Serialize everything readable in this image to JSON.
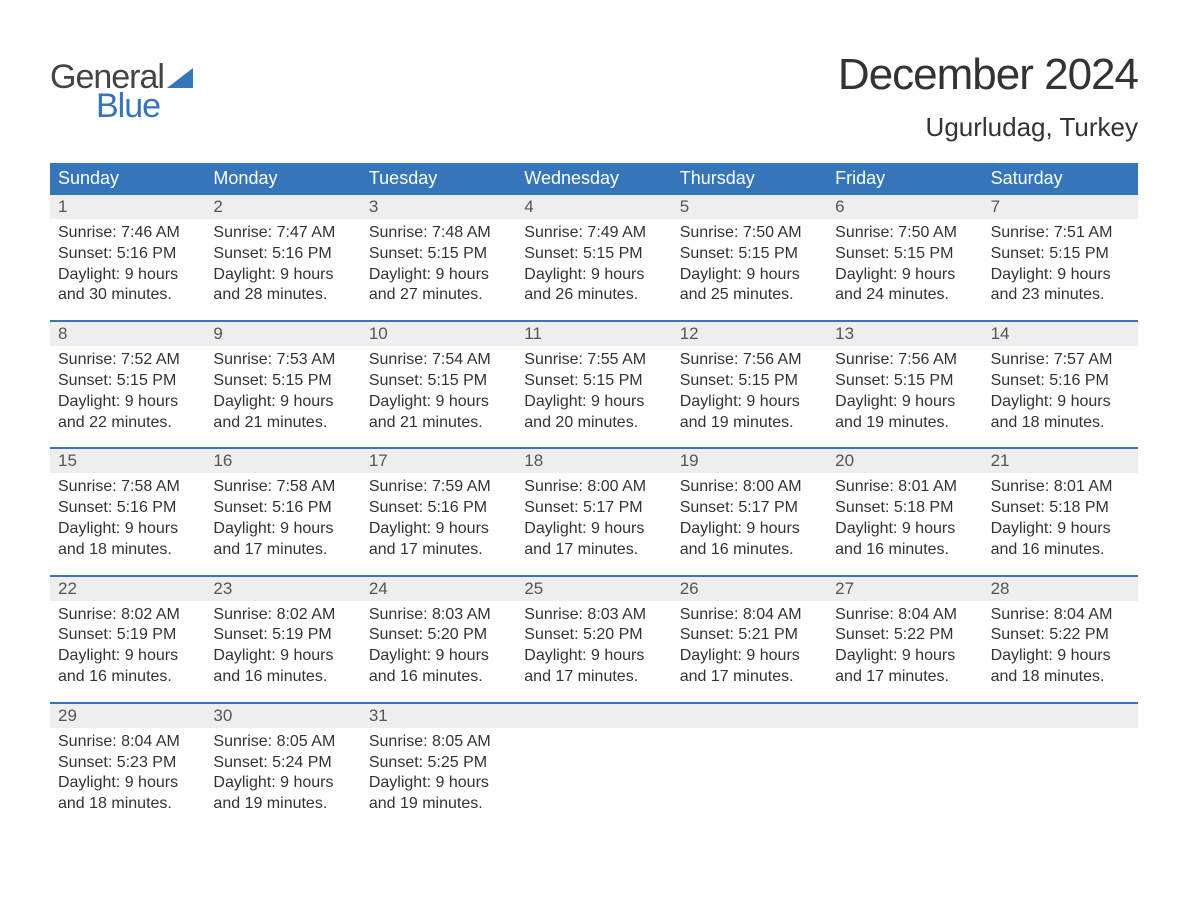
{
  "brand": {
    "word1": "General",
    "word2": "Blue",
    "text_color": "#444444",
    "accent_color": "#3576bb"
  },
  "title": {
    "month": "December 2024",
    "location": "Ugurludag, Turkey"
  },
  "colors": {
    "header_bg": "#3576bb",
    "header_text": "#ffffff",
    "daynum_bg": "#eeeeee",
    "daynum_text": "#555555",
    "body_text": "#333333",
    "week_border": "#3576bb",
    "page_bg": "#ffffff"
  },
  "weekdays": [
    "Sunday",
    "Monday",
    "Tuesday",
    "Wednesday",
    "Thursday",
    "Friday",
    "Saturday"
  ],
  "labels": {
    "sunrise": "Sunrise:",
    "sunset": "Sunset:",
    "daylight": "Daylight:"
  },
  "weeks": [
    [
      {
        "day": "1",
        "sunrise": "7:46 AM",
        "sunset": "5:16 PM",
        "daylight": "9 hours and 30 minutes."
      },
      {
        "day": "2",
        "sunrise": "7:47 AM",
        "sunset": "5:16 PM",
        "daylight": "9 hours and 28 minutes."
      },
      {
        "day": "3",
        "sunrise": "7:48 AM",
        "sunset": "5:15 PM",
        "daylight": "9 hours and 27 minutes."
      },
      {
        "day": "4",
        "sunrise": "7:49 AM",
        "sunset": "5:15 PM",
        "daylight": "9 hours and 26 minutes."
      },
      {
        "day": "5",
        "sunrise": "7:50 AM",
        "sunset": "5:15 PM",
        "daylight": "9 hours and 25 minutes."
      },
      {
        "day": "6",
        "sunrise": "7:50 AM",
        "sunset": "5:15 PM",
        "daylight": "9 hours and 24 minutes."
      },
      {
        "day": "7",
        "sunrise": "7:51 AM",
        "sunset": "5:15 PM",
        "daylight": "9 hours and 23 minutes."
      }
    ],
    [
      {
        "day": "8",
        "sunrise": "7:52 AM",
        "sunset": "5:15 PM",
        "daylight": "9 hours and 22 minutes."
      },
      {
        "day": "9",
        "sunrise": "7:53 AM",
        "sunset": "5:15 PM",
        "daylight": "9 hours and 21 minutes."
      },
      {
        "day": "10",
        "sunrise": "7:54 AM",
        "sunset": "5:15 PM",
        "daylight": "9 hours and 21 minutes."
      },
      {
        "day": "11",
        "sunrise": "7:55 AM",
        "sunset": "5:15 PM",
        "daylight": "9 hours and 20 minutes."
      },
      {
        "day": "12",
        "sunrise": "7:56 AM",
        "sunset": "5:15 PM",
        "daylight": "9 hours and 19 minutes."
      },
      {
        "day": "13",
        "sunrise": "7:56 AM",
        "sunset": "5:15 PM",
        "daylight": "9 hours and 19 minutes."
      },
      {
        "day": "14",
        "sunrise": "7:57 AM",
        "sunset": "5:16 PM",
        "daylight": "9 hours and 18 minutes."
      }
    ],
    [
      {
        "day": "15",
        "sunrise": "7:58 AM",
        "sunset": "5:16 PM",
        "daylight": "9 hours and 18 minutes."
      },
      {
        "day": "16",
        "sunrise": "7:58 AM",
        "sunset": "5:16 PM",
        "daylight": "9 hours and 17 minutes."
      },
      {
        "day": "17",
        "sunrise": "7:59 AM",
        "sunset": "5:16 PM",
        "daylight": "9 hours and 17 minutes."
      },
      {
        "day": "18",
        "sunrise": "8:00 AM",
        "sunset": "5:17 PM",
        "daylight": "9 hours and 17 minutes."
      },
      {
        "day": "19",
        "sunrise": "8:00 AM",
        "sunset": "5:17 PM",
        "daylight": "9 hours and 16 minutes."
      },
      {
        "day": "20",
        "sunrise": "8:01 AM",
        "sunset": "5:18 PM",
        "daylight": "9 hours and 16 minutes."
      },
      {
        "day": "21",
        "sunrise": "8:01 AM",
        "sunset": "5:18 PM",
        "daylight": "9 hours and 16 minutes."
      }
    ],
    [
      {
        "day": "22",
        "sunrise": "8:02 AM",
        "sunset": "5:19 PM",
        "daylight": "9 hours and 16 minutes."
      },
      {
        "day": "23",
        "sunrise": "8:02 AM",
        "sunset": "5:19 PM",
        "daylight": "9 hours and 16 minutes."
      },
      {
        "day": "24",
        "sunrise": "8:03 AM",
        "sunset": "5:20 PM",
        "daylight": "9 hours and 16 minutes."
      },
      {
        "day": "25",
        "sunrise": "8:03 AM",
        "sunset": "5:20 PM",
        "daylight": "9 hours and 17 minutes."
      },
      {
        "day": "26",
        "sunrise": "8:04 AM",
        "sunset": "5:21 PM",
        "daylight": "9 hours and 17 minutes."
      },
      {
        "day": "27",
        "sunrise": "8:04 AM",
        "sunset": "5:22 PM",
        "daylight": "9 hours and 17 minutes."
      },
      {
        "day": "28",
        "sunrise": "8:04 AM",
        "sunset": "5:22 PM",
        "daylight": "9 hours and 18 minutes."
      }
    ],
    [
      {
        "day": "29",
        "sunrise": "8:04 AM",
        "sunset": "5:23 PM",
        "daylight": "9 hours and 18 minutes."
      },
      {
        "day": "30",
        "sunrise": "8:05 AM",
        "sunset": "5:24 PM",
        "daylight": "9 hours and 19 minutes."
      },
      {
        "day": "31",
        "sunrise": "8:05 AM",
        "sunset": "5:25 PM",
        "daylight": "9 hours and 19 minutes."
      },
      null,
      null,
      null,
      null
    ]
  ]
}
